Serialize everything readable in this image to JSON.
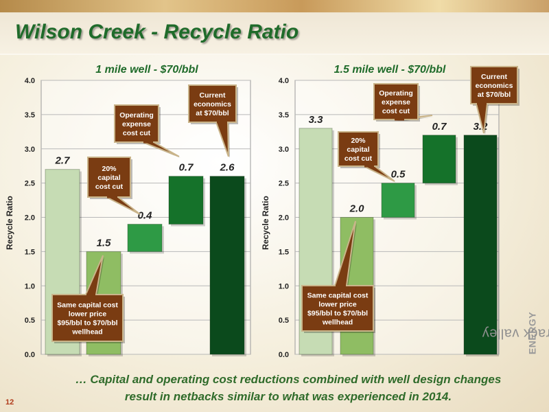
{
  "page": {
    "title": "Wilson Creek - Recycle Ratio",
    "page_number": "12",
    "brand_name": "tamarack valley",
    "brand_suffix": "ENERGY",
    "footnote_prefix": "…",
    "footnote_text": "Capital and operating cost reductions combined with well design changes result in netbacks similar to what was experienced in 2014",
    "footnote_suffix": "."
  },
  "colors": {
    "title": "#1f6b2a",
    "bar_light": "#c6dcb4",
    "bar_medium": "#8fbd63",
    "bar_green": "#2e9a45",
    "bar_green2": "#15722a",
    "bar_dark": "#0b4a1c",
    "callout_fill": "#7a3c12",
    "callout_border": "#c9b48a"
  },
  "chart_data": [
    {
      "type": "bar",
      "subtype": "waterfall",
      "title": "1 mile well - $70/bbl",
      "ylabel": "Recycle Ratio",
      "ylim": [
        0,
        4
      ],
      "yticks": [
        "0.0",
        "0.5",
        "1.0",
        "1.5",
        "2.0",
        "2.5",
        "3.0",
        "3.5",
        "4.0"
      ],
      "grid": true,
      "bars": [
        {
          "start": 0,
          "end": 2.7,
          "label": "2.7",
          "color": "#c6dcb4"
        },
        {
          "start": 0,
          "end": 1.5,
          "label": "1.5",
          "color": "#8fbd63"
        },
        {
          "start": 1.5,
          "end": 1.9,
          "label": "0.4",
          "color": "#2e9a45"
        },
        {
          "start": 1.9,
          "end": 2.6,
          "label": "0.7",
          "color": "#15722a"
        },
        {
          "start": 0,
          "end": 2.6,
          "label": "2.6",
          "color": "#0b4a1c"
        }
      ],
      "callouts": [
        {
          "lines": [
            "Same capital cost",
            "lower price",
            "$95/bbl to $70/bbl",
            "wellhead"
          ],
          "bar": 1
        },
        {
          "lines": [
            "20%",
            "capital",
            "cost cut"
          ],
          "bar": 2
        },
        {
          "lines": [
            "Operating",
            "expense",
            "cost cut"
          ],
          "bar": 3
        },
        {
          "lines": [
            "Current",
            "economics",
            "at $70/bbl"
          ],
          "bar": 4
        }
      ]
    },
    {
      "type": "bar",
      "subtype": "waterfall",
      "title": "1.5 mile well - $70/bbl",
      "ylabel": "Recycle Ratio",
      "ylim": [
        0,
        4
      ],
      "yticks": [
        "0.0",
        "0.5",
        "1.0",
        "1.5",
        "2.0",
        "2.5",
        "3.0",
        "3.5",
        "4.0"
      ],
      "grid": true,
      "bars": [
        {
          "start": 0,
          "end": 3.3,
          "label": "3.3",
          "color": "#c6dcb4"
        },
        {
          "start": 0,
          "end": 2.0,
          "label": "2.0",
          "color": "#8fbd63"
        },
        {
          "start": 2.0,
          "end": 2.5,
          "label": "0.5",
          "color": "#2e9a45"
        },
        {
          "start": 2.5,
          "end": 3.2,
          "label": "0.7",
          "color": "#15722a"
        },
        {
          "start": 0,
          "end": 3.2,
          "label": "3.2",
          "color": "#0b4a1c"
        }
      ],
      "callouts": [
        {
          "lines": [
            "Same capital cost",
            "lower price",
            "$95/bbl to $70/bbl",
            "wellhead"
          ],
          "bar": 1
        },
        {
          "lines": [
            "20%",
            "capital",
            "cost cut"
          ],
          "bar": 2
        },
        {
          "lines": [
            "Operating",
            "expense",
            "cost cut"
          ],
          "bar": 3
        },
        {
          "lines": [
            "Current",
            "economics",
            "at $70/bbl"
          ],
          "bar": 4
        }
      ]
    }
  ]
}
